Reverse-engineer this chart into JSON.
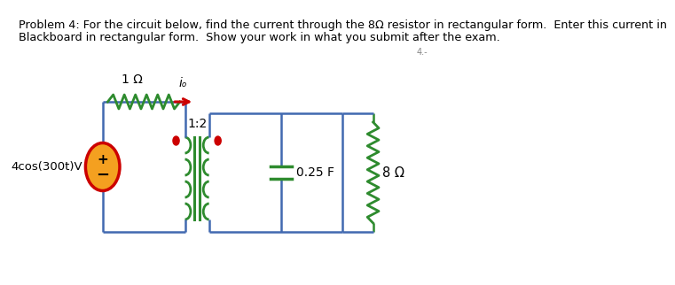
{
  "background_color": "#ffffff",
  "text_color": "#000000",
  "problem_text_line1": "Problem 4: For the circuit below, find the current through the 8Ω resistor in rectangular form.  Enter this current in",
  "problem_text_line2": "Blackboard in rectangular form.  Show your work in what you submit after the exam.",
  "voltage_source_label": "4cos(300t)V",
  "resistor1_label": "1 Ω",
  "io_label": "iₒ",
  "transformer_ratio": "1:2",
  "capacitor_label": "0.25 F",
  "resistor2_label": "8 Ω",
  "wire_color": "#4169b0",
  "component_color": "#2e8b2e",
  "arrow_color": "#cc0000",
  "dot_color": "#cc0000",
  "vsource_fill": "#f4a020",
  "vsource_stroke": "#cc0000",
  "core_color": "#2e8b2e"
}
